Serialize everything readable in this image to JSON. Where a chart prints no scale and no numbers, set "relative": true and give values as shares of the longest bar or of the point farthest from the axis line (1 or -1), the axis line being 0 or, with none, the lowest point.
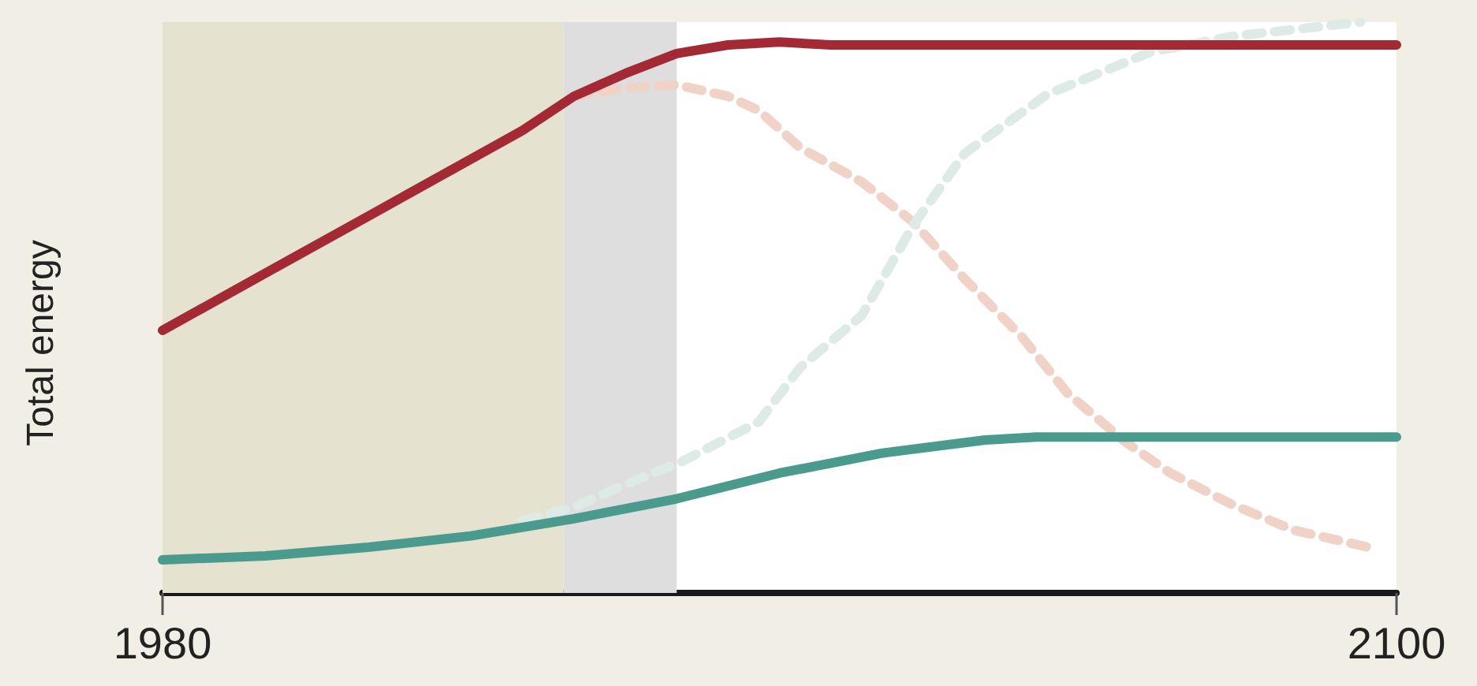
{
  "chart_data": {
    "type": "line",
    "ylabel": "Total energy",
    "relative": true,
    "xlim": [
      1980,
      2100
    ],
    "xticks": [
      1980,
      2100
    ],
    "marker": "none",
    "grid": false,
    "bands": [
      {
        "axis": "x",
        "from": 1980,
        "to": 2019,
        "color": "#e5e2d0"
      },
      {
        "axis": "x",
        "from": 2019,
        "to": 2030,
        "color": "#dedede"
      }
    ],
    "series": [
      {
        "color": "#f0d2c6",
        "line_style": "dashed",
        "x": [
          2020,
          2025,
          2030,
          2035,
          2038,
          2042,
          2048,
          2053,
          2058,
          2063.5,
          2068,
          2073.6,
          2078,
          2084,
          2090,
          2098
        ],
        "values": [
          0.87,
          0.885,
          0.89,
          0.87,
          0.845,
          0.78,
          0.72,
          0.65,
          0.55,
          0.45,
          0.35,
          0.265,
          0.21,
          0.155,
          0.11,
          0.077
        ]
      },
      {
        "color": "#deeae6",
        "line_style": "dashed",
        "x": [
          2015,
          2020,
          2025,
          2030.5,
          2038,
          2042,
          2048,
          2053,
          2058,
          2066,
          2076,
          2084,
          2096.5
        ],
        "values": [
          0.127,
          0.15,
          0.19,
          0.23,
          0.3,
          0.395,
          0.486,
          0.644,
          0.77,
          0.873,
          0.947,
          0.975,
          1
        ]
      },
      {
        "color": "#a32a35",
        "line_style": "solid",
        "x": [
          1980,
          1990,
          2000,
          2010,
          2015,
          2020,
          2025,
          2030,
          2035,
          2040,
          2045,
          2050,
          2100
        ],
        "values": [
          0.46,
          0.56,
          0.66,
          0.76,
          0.81,
          0.87,
          0.91,
          0.945,
          0.96,
          0.965,
          0.96,
          0.96,
          0.96
        ]
      },
      {
        "color": "#4a9a8e",
        "line_style": "solid",
        "x": [
          1980,
          1990,
          2000,
          2010,
          2020,
          2030,
          2040,
          2050,
          2060,
          2065,
          2100
        ],
        "values": [
          0.058,
          0.065,
          0.08,
          0.1,
          0.13,
          0.165,
          0.21,
          0.245,
          0.268,
          0.273,
          0.273
        ]
      }
    ]
  }
}
